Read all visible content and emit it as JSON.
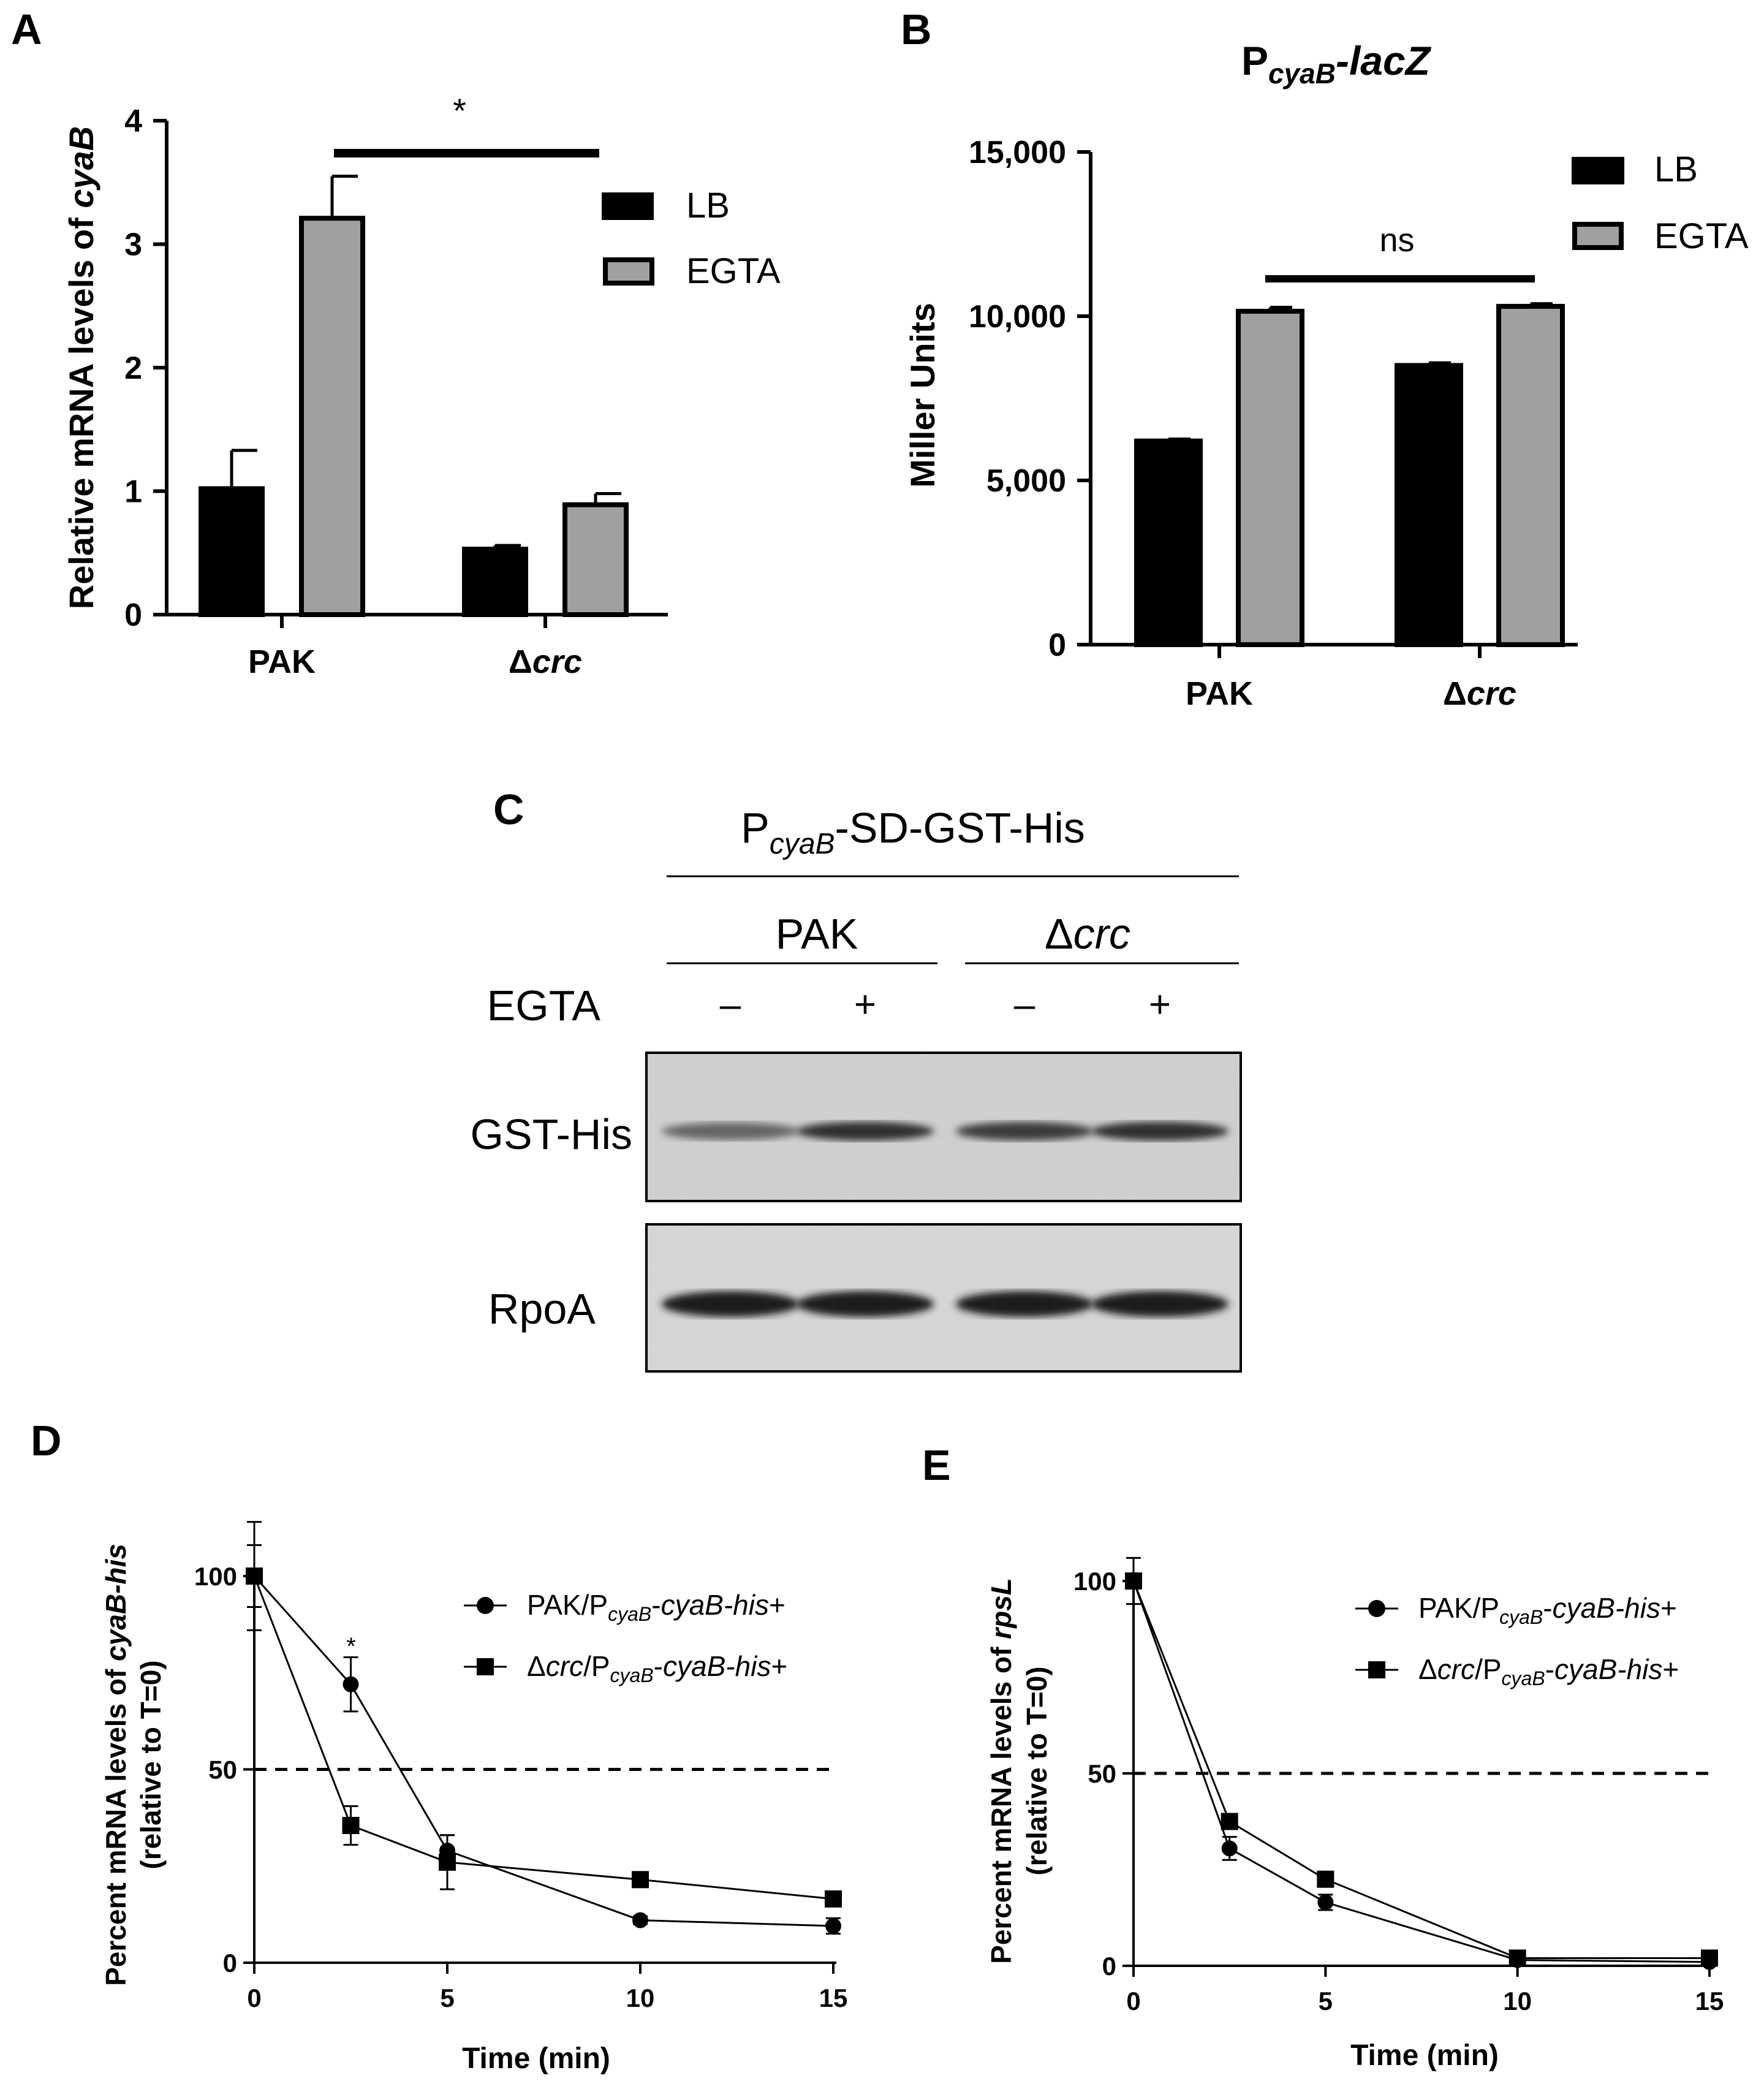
{
  "panels": {
    "A": {
      "letter": "A"
    },
    "B": {
      "letter": "B"
    },
    "C": {
      "letter": "C"
    },
    "D": {
      "letter": "D"
    },
    "E": {
      "letter": "E"
    }
  },
  "colors": {
    "lb": "#000000",
    "egta": "#a0a0a0",
    "axis": "#000000"
  },
  "chart_data": [
    {
      "id": "A",
      "type": "bar",
      "title": "",
      "ylabel": "Relative mRNA levels of cyaB",
      "ylabel_plain": "Relative mRNA levels of ",
      "ylabel_italic": "cyaB",
      "xlabel": "",
      "categories": [
        "PAK",
        "Δcrc"
      ],
      "category_parts": [
        {
          "plain": "PAK",
          "italic": ""
        },
        {
          "plain": "Δ",
          "italic": "crc"
        }
      ],
      "ylim": [
        0,
        4
      ],
      "yticks": [
        0,
        1,
        2,
        3,
        4
      ],
      "ytick_labels": [
        "0",
        "1",
        "2",
        "3",
        "4"
      ],
      "series": [
        {
          "name": "LB",
          "values": [
            1.02,
            0.53
          ],
          "errors": [
            0.31,
            0.03
          ]
        },
        {
          "name": "EGTA",
          "values": [
            3.21,
            0.89
          ],
          "errors": [
            0.34,
            0.09
          ]
        }
      ],
      "legend": [
        "LB",
        "EGTA"
      ],
      "legend_position": "top-right",
      "significance": "*"
    },
    {
      "id": "B",
      "type": "bar",
      "title": "PcyaB-lacZ",
      "title_parts": {
        "main": "P",
        "sub": "cyaB",
        "rest": "-lacZ"
      },
      "ylabel": "Miller Units",
      "xlabel": "",
      "categories": [
        "PAK",
        "Δcrc"
      ],
      "category_parts": [
        {
          "plain": "PAK",
          "italic": ""
        },
        {
          "plain": "Δ",
          "italic": "crc"
        }
      ],
      "ylim": [
        0,
        15000
      ],
      "yticks": [
        0,
        5000,
        10000,
        15000
      ],
      "ytick_labels": [
        "0",
        "5,000",
        "10,000",
        "15,000"
      ],
      "series": [
        {
          "name": "LB",
          "values": [
            6200,
            8500
          ],
          "errors": [
            60,
            80
          ]
        },
        {
          "name": "EGTA",
          "values": [
            10150,
            10300
          ],
          "errors": [
            120,
            80
          ]
        }
      ],
      "legend": [
        "LB",
        "EGTA"
      ],
      "legend_position": "top-right",
      "significance": "ns"
    },
    {
      "id": "D",
      "type": "line",
      "title": "",
      "ylabel": "Percent mRNA levels of cyaB-his (relative to T=0)",
      "ylabel_line1_plain": "Percent mRNA levels of ",
      "ylabel_line1_italic": "cyaB-his",
      "ylabel_line2": "(relative to T=0)",
      "xlabel": "Time (min)",
      "xlim": [
        0,
        15
      ],
      "ylim": [
        0,
        100
      ],
      "xticks": [
        0,
        5,
        10,
        15
      ],
      "yticks": [
        0,
        50,
        100
      ],
      "reference_line": 50,
      "series": [
        {
          "name": "PAK/PcyaB-cyaB-his+",
          "marker": "circle",
          "legend_parts": {
            "a": "PAK/P",
            "sub": "cyaB",
            "b": "-",
            "it": "cyaB-his",
            "c": "+"
          },
          "x": [
            0,
            2.5,
            5,
            10,
            15
          ],
          "y": [
            100,
            72,
            29,
            11,
            9.5
          ],
          "err": [
            8,
            7,
            4,
            1,
            2
          ]
        },
        {
          "name": "Δcrc/PcyaB-cyaB-his+",
          "marker": "square",
          "legend_parts": {
            "a": "Δ",
            "it0": "crc",
            "a2": "/P",
            "sub": "cyaB",
            "b": "-",
            "it": "cyaB-his",
            "c": "+"
          },
          "x": [
            0,
            2.5,
            5,
            10,
            15
          ],
          "y": [
            100,
            35.5,
            26,
            21.5,
            16.5
          ],
          "err": [
            14,
            5,
            7,
            1,
            1
          ]
        }
      ],
      "annotation": "*",
      "legend_position": "top-right"
    },
    {
      "id": "E",
      "type": "line",
      "title": "",
      "ylabel": "Percent mRNA levels of rpsL (relative to T=0)",
      "ylabel_line1_plain": "Percent mRNA levels of ",
      "ylabel_line1_italic": "rpsL",
      "ylabel_line2": "(relative to T=0)",
      "xlabel": "Time (min)",
      "xlim": [
        0,
        15
      ],
      "ylim": [
        0,
        100
      ],
      "xticks": [
        0,
        5,
        10,
        15
      ],
      "yticks": [
        0,
        50,
        100
      ],
      "reference_line": 50,
      "series": [
        {
          "name": "PAK/PcyaB-cyaB-his+",
          "marker": "circle",
          "legend_parts": {
            "a": "PAK/P",
            "sub": "cyaB",
            "b": "-",
            "it": "cyaB-his",
            "c": "+"
          },
          "x": [
            0,
            2.5,
            5,
            10,
            15
          ],
          "y": [
            100,
            30.5,
            16.5,
            1.5,
            1
          ],
          "err": [
            6,
            3,
            2,
            0.5,
            0.5
          ]
        },
        {
          "name": "Δcrc/PcyaB-cyaB-his+",
          "marker": "square",
          "legend_parts": {
            "a": "Δ",
            "it0": "crc",
            "a2": "/P",
            "sub": "cyaB",
            "b": "-",
            "it": "cyaB-his",
            "c": "+"
          },
          "x": [
            0,
            2.5,
            5,
            10,
            15
          ],
          "y": [
            100,
            37.5,
            22.5,
            2,
            2
          ],
          "err": [
            2,
            2,
            1,
            0.5,
            0.5
          ]
        }
      ],
      "legend_position": "top-right"
    }
  ],
  "blot": {
    "construct_parts": {
      "main": "P",
      "sub": "cyaB",
      "rest": "-SD-GST-His"
    },
    "strains": [
      {
        "plain": "PAK",
        "italic": ""
      },
      {
        "plain": "Δ",
        "italic": "crc"
      }
    ],
    "treatment_label": "EGTA",
    "treatment_signs": [
      "–",
      "+",
      "–",
      "+"
    ],
    "rows": [
      {
        "label": "GST-His",
        "intensities": [
          0.6,
          0.85,
          0.8,
          0.85
        ]
      },
      {
        "label": "RpoA",
        "intensities": [
          0.95,
          0.95,
          0.95,
          0.95
        ]
      }
    ]
  }
}
